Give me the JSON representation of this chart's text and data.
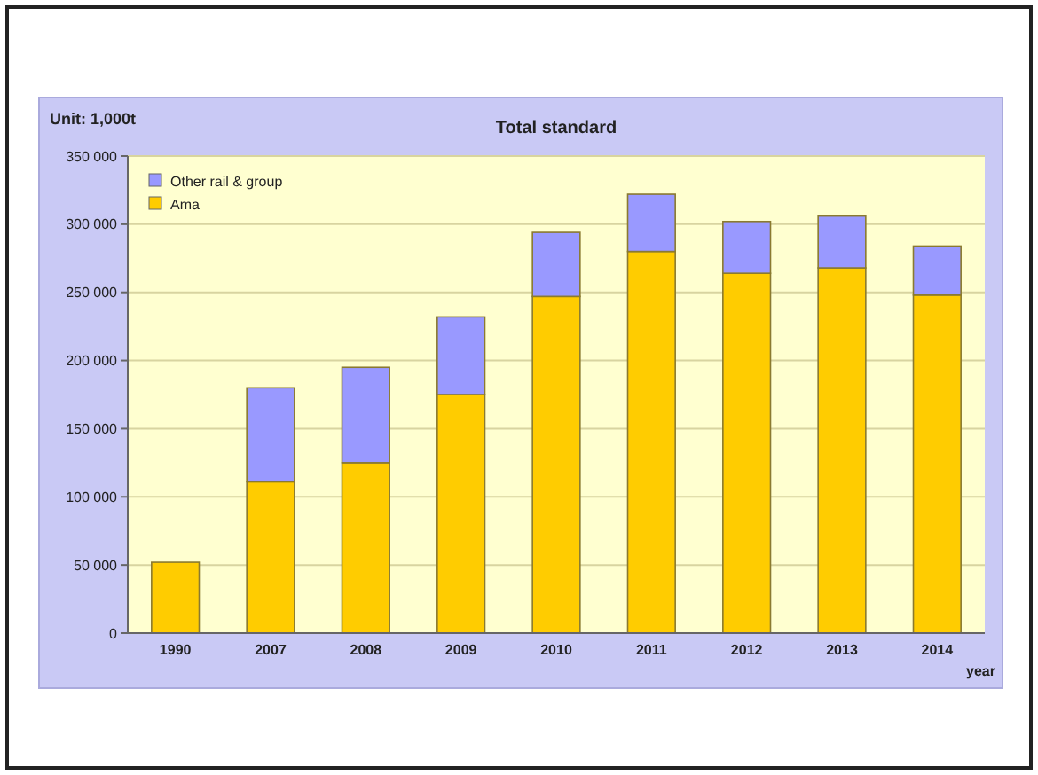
{
  "chart_data": {
    "type": "bar",
    "title": "Total standard",
    "ylabel": "Unit: 1,000t",
    "xlabel": "year",
    "stacked": true,
    "categories": [
      "1990",
      "2007",
      "2008",
      "2009",
      "2010",
      "2011",
      "2012",
      "2013",
      "2014"
    ],
    "series": [
      {
        "name": "Ama",
        "color": "#ffcc00",
        "values": [
          52000,
          111000,
          125000,
          175000,
          247000,
          280000,
          264000,
          268000,
          248000
        ]
      },
      {
        "name": "Other rail & group",
        "color": "#9999ff",
        "values": [
          null,
          69000,
          70000,
          57000,
          47000,
          42000,
          38000,
          38000,
          36000
        ]
      }
    ],
    "ylim": [
      0,
      350000
    ],
    "yticks": [
      {
        "value": 0,
        "label": "0"
      },
      {
        "value": 50000,
        "label": "50 000"
      },
      {
        "value": 100000,
        "label": "100 000"
      },
      {
        "value": 150000,
        "label": "150 000"
      },
      {
        "value": 200000,
        "label": "200 000"
      },
      {
        "value": 250000,
        "label": "250 000"
      },
      {
        "value": 300000,
        "label": "300 000"
      },
      {
        "value": 350000,
        "label": "350 000"
      }
    ],
    "grid": "y",
    "legend": "top left"
  }
}
